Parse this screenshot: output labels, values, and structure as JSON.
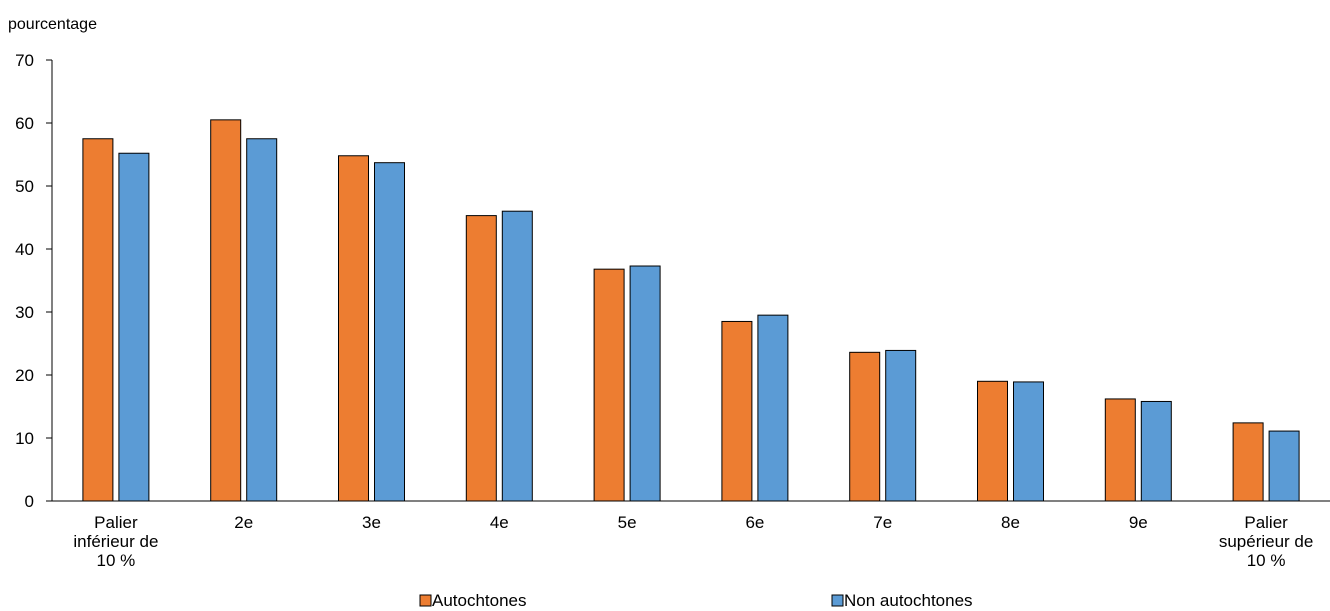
{
  "chart_data": {
    "type": "bar",
    "ylabel": "pourcentage",
    "ylim": [
      0,
      70
    ],
    "yticks": [
      0,
      10,
      20,
      30,
      40,
      50,
      60,
      70
    ],
    "categories": [
      [
        "Palier",
        "inférieur de",
        "10 %"
      ],
      [
        "2e"
      ],
      [
        "3e"
      ],
      [
        "4e"
      ],
      [
        "5e"
      ],
      [
        "6e"
      ],
      [
        "7e"
      ],
      [
        "8e"
      ],
      [
        "9e"
      ],
      [
        "Palier",
        "supérieur de",
        "10 %"
      ]
    ],
    "series": [
      {
        "name": "Autochtones",
        "color": "#ED7D31",
        "values": [
          57.5,
          60.5,
          54.8,
          45.3,
          36.8,
          28.5,
          23.6,
          19.0,
          16.2,
          12.4
        ]
      },
      {
        "name": "Non autochtones",
        "color": "#5B9BD5",
        "values": [
          55.2,
          57.5,
          53.7,
          46.0,
          37.3,
          29.5,
          23.9,
          18.9,
          15.8,
          11.1
        ]
      }
    ],
    "grid": false,
    "legend_position": "bottom"
  }
}
